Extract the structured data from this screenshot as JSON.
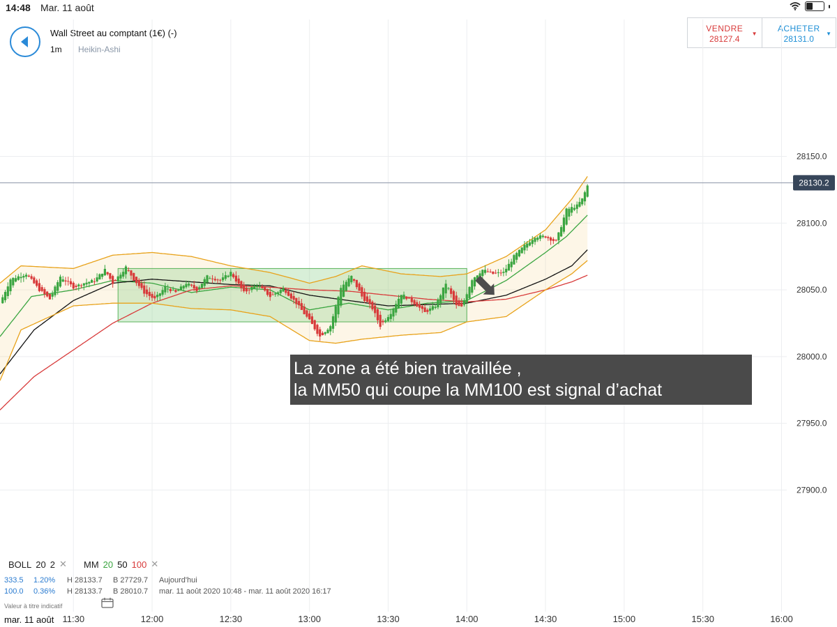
{
  "status": {
    "time": "14:48",
    "date": "Mar. 11 août"
  },
  "instrument": {
    "title": "Wall Street au comptant (1€) (-)",
    "period": "1m",
    "chart_type": "Heikin-Ashi"
  },
  "trade": {
    "sell_label": "VENDRE",
    "sell_price": "28127.4",
    "buy_label": "ACHETER",
    "buy_price": "28131.0",
    "sell_color": "#d83a3a",
    "buy_color": "#1e8fd6"
  },
  "chart_data": {
    "type": "candlestick",
    "y_ticks": [
      {
        "value": 28150,
        "label": "28150.0"
      },
      {
        "value": 28100,
        "label": "28100.0"
      },
      {
        "value": 28050,
        "label": "28050.0"
      },
      {
        "value": 28000,
        "label": "28000.0"
      },
      {
        "value": 27950,
        "label": "27950.0"
      },
      {
        "value": 27900,
        "label": "27900.0"
      }
    ],
    "x_ticks": [
      "11:30",
      "12:00",
      "12:30",
      "13:00",
      "13:30",
      "14:00",
      "14:30",
      "15:00",
      "15:30",
      "16:00"
    ],
    "ylim": [
      27860,
      28215
    ],
    "xlim": [
      "11:02",
      "16:02"
    ],
    "current_price": {
      "value": 28130.2,
      "label": "28130.2"
    },
    "rectangle": {
      "from": "11:47",
      "to": "14:00",
      "low": 28026,
      "high": 28066,
      "color": "#8fd08f"
    },
    "candle_colors": {
      "up": "#3aa540",
      "down": "#d83a3a"
    },
    "close_path": [
      [
        "11:02",
        28040
      ],
      [
        "11:06",
        28058
      ],
      [
        "11:12",
        28062
      ],
      [
        "11:17",
        28050
      ],
      [
        "11:21",
        28043
      ],
      [
        "11:25",
        28060
      ],
      [
        "11:30",
        28052
      ],
      [
        "11:34",
        28055
      ],
      [
        "11:38",
        28057
      ],
      [
        "11:42",
        28065
      ],
      [
        "11:45",
        28055
      ],
      [
        "11:50",
        28067
      ],
      [
        "11:53",
        28058
      ],
      [
        "11:57",
        28048
      ],
      [
        "12:01",
        28043
      ],
      [
        "12:05",
        28052
      ],
      [
        "12:09",
        28048
      ],
      [
        "12:13",
        28055
      ],
      [
        "12:17",
        28050
      ],
      [
        "12:21",
        28060
      ],
      [
        "12:26",
        28057
      ],
      [
        "12:30",
        28063
      ],
      [
        "12:35",
        28048
      ],
      [
        "12:40",
        28054
      ],
      [
        "12:45",
        28045
      ],
      [
        "12:50",
        28051
      ],
      [
        "12:55",
        28040
      ],
      [
        "13:00",
        28027
      ],
      [
        "13:04",
        28015
      ],
      [
        "13:08",
        28023
      ],
      [
        "13:12",
        28052
      ],
      [
        "13:16",
        28060
      ],
      [
        "13:20",
        28045
      ],
      [
        "13:24",
        28036
      ],
      [
        "13:27",
        28023
      ],
      [
        "13:31",
        28033
      ],
      [
        "13:35",
        28047
      ],
      [
        "13:40",
        28040
      ],
      [
        "13:44",
        28033
      ],
      [
        "13:48",
        28038
      ],
      [
        "13:52",
        28055
      ],
      [
        "13:56",
        28038
      ],
      [
        "13:58",
        28037
      ],
      [
        "14:02",
        28058
      ],
      [
        "14:06",
        28065
      ],
      [
        "14:10",
        28062
      ],
      [
        "14:14",
        28063
      ],
      [
        "14:18",
        28075
      ],
      [
        "14:22",
        28083
      ],
      [
        "14:26",
        28090
      ],
      [
        "14:30",
        28090
      ],
      [
        "14:34",
        28086
      ],
      [
        "14:38",
        28110
      ],
      [
        "14:42",
        28113
      ],
      [
        "14:44",
        28118
      ],
      [
        "14:46",
        28128
      ]
    ],
    "series": [
      {
        "name": "MM 20",
        "color": "#3aa540",
        "points": [
          [
            "11:02",
            28015
          ],
          [
            "11:14",
            28045
          ],
          [
            "11:30",
            28050
          ],
          [
            "11:45",
            28057
          ],
          [
            "12:00",
            28055
          ],
          [
            "12:15",
            28048
          ],
          [
            "12:30",
            28052
          ],
          [
            "12:45",
            28050
          ],
          [
            "13:00",
            28035
          ],
          [
            "13:15",
            28040
          ],
          [
            "13:30",
            28035
          ],
          [
            "13:45",
            28040
          ],
          [
            "14:00",
            28042
          ],
          [
            "14:15",
            28057
          ],
          [
            "14:30",
            28078
          ],
          [
            "14:38",
            28090
          ],
          [
            "14:46",
            28106
          ]
        ]
      },
      {
        "name": "MM 50",
        "color": "#111111",
        "points": [
          [
            "11:02",
            27987
          ],
          [
            "11:15",
            28020
          ],
          [
            "11:30",
            28042
          ],
          [
            "11:45",
            28055
          ],
          [
            "12:00",
            28058
          ],
          [
            "12:15",
            28056
          ],
          [
            "12:30",
            28054
          ],
          [
            "12:45",
            28053
          ],
          [
            "13:00",
            28046
          ],
          [
            "13:15",
            28042
          ],
          [
            "13:30",
            28038
          ],
          [
            "13:45",
            28039
          ],
          [
            "14:00",
            28040
          ],
          [
            "14:15",
            28046
          ],
          [
            "14:30",
            28058
          ],
          [
            "14:40",
            28068
          ],
          [
            "14:46",
            28080
          ]
        ]
      },
      {
        "name": "MM 100",
        "color": "#d83a3a",
        "points": [
          [
            "11:02",
            27960
          ],
          [
            "11:15",
            27985
          ],
          [
            "11:30",
            28005
          ],
          [
            "11:45",
            28025
          ],
          [
            "12:00",
            28040
          ],
          [
            "12:15",
            28050
          ],
          [
            "12:30",
            28053
          ],
          [
            "12:45",
            28052
          ],
          [
            "13:00",
            28050
          ],
          [
            "13:15",
            28049
          ],
          [
            "13:30",
            28046
          ],
          [
            "13:45",
            28043
          ],
          [
            "14:00",
            28041
          ],
          [
            "14:15",
            28043
          ],
          [
            "14:30",
            28050
          ],
          [
            "14:40",
            28056
          ],
          [
            "14:46",
            28061
          ]
        ]
      },
      {
        "name": "BOLL upper",
        "color": "#e8a21a",
        "points": [
          [
            "11:02",
            28055
          ],
          [
            "11:10",
            28068
          ],
          [
            "11:30",
            28066
          ],
          [
            "11:45",
            28076
          ],
          [
            "12:00",
            28078
          ],
          [
            "12:15",
            28075
          ],
          [
            "12:30",
            28068
          ],
          [
            "12:45",
            28063
          ],
          [
            "13:00",
            28055
          ],
          [
            "13:10",
            28060
          ],
          [
            "13:20",
            28068
          ],
          [
            "13:35",
            28062
          ],
          [
            "13:50",
            28060
          ],
          [
            "14:00",
            28062
          ],
          [
            "14:15",
            28075
          ],
          [
            "14:30",
            28095
          ],
          [
            "14:40",
            28118
          ],
          [
            "14:46",
            28135
          ]
        ]
      },
      {
        "name": "BOLL lower",
        "color": "#e8a21a",
        "points": [
          [
            "11:02",
            27982
          ],
          [
            "11:10",
            28020
          ],
          [
            "11:30",
            28038
          ],
          [
            "11:45",
            28040
          ],
          [
            "12:00",
            28040
          ],
          [
            "12:15",
            28036
          ],
          [
            "12:30",
            28035
          ],
          [
            "12:45",
            28030
          ],
          [
            "13:00",
            28012
          ],
          [
            "13:10",
            28010
          ],
          [
            "13:20",
            28013
          ],
          [
            "13:35",
            28016
          ],
          [
            "13:50",
            28018
          ],
          [
            "14:00",
            28026
          ],
          [
            "14:15",
            28030
          ],
          [
            "14:30",
            28050
          ],
          [
            "14:40",
            28062
          ],
          [
            "14:46",
            28072
          ]
        ]
      }
    ],
    "annotation_arrow": {
      "time": "14:10",
      "price": 28040
    }
  },
  "annotation": {
    "line1": "La zone a été bien travaillée ,",
    "line2": "la MM50 qui coupe la MM100 est signal d’achat"
  },
  "legend": {
    "boll": {
      "name": "BOLL",
      "p1": "20",
      "p2": "2"
    },
    "mm": {
      "name": "MM",
      "p1": "20",
      "p2": "50",
      "p3": "100",
      "c1": "#3aa540",
      "c2": "#111111",
      "c3": "#d83a3a"
    }
  },
  "info": {
    "row1": {
      "a": "333.5",
      "b": "1.20%",
      "h": "H 28133.7",
      "l": "B 27729.7",
      "range": "Aujourd'hui"
    },
    "row2": {
      "a": "100.0",
      "b": "0.36%",
      "h": "H 28133.7",
      "l": "B 28010.7",
      "range": "mar. 11 août 2020 10:48 - mar. 11 août 2020 16:17"
    }
  },
  "disclaimer": "Valeur à titre indicatif",
  "footer_date": "mar. 11 août"
}
